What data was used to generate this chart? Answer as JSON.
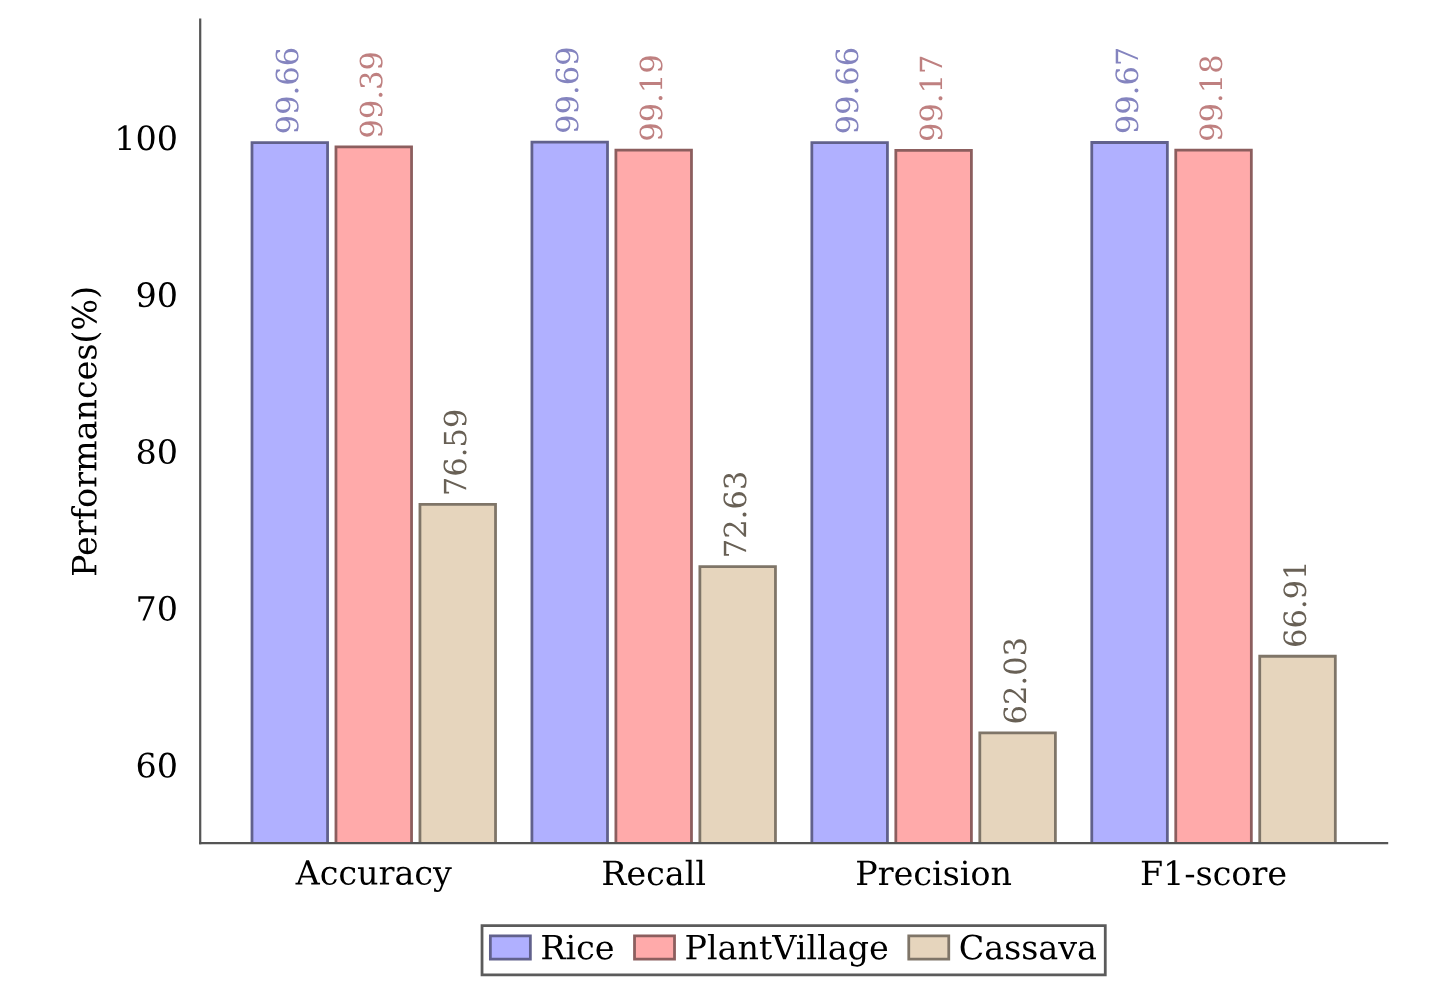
{
  "chart_data": {
    "type": "bar",
    "ylabel": "Performances(%)",
    "categories": [
      "Accuracy",
      "Recall",
      "Precision",
      "F1-score"
    ],
    "series": [
      {
        "name": "Rice",
        "color": "#b0b0ff",
        "values": [
          99.66,
          99.69,
          99.66,
          99.67
        ]
      },
      {
        "name": "PlantVillage",
        "color": "#ffaaaa",
        "values": [
          99.39,
          99.19,
          99.17,
          99.18
        ]
      },
      {
        "name": "Cassava",
        "color": "#e6d5bd",
        "values": [
          76.59,
          72.63,
          62.03,
          66.91
        ]
      }
    ],
    "ylim": [
      55,
      107.5
    ],
    "yticks": [
      60,
      70,
      80,
      90,
      100
    ],
    "grid": false,
    "legend": "bottom",
    "data_labels": true
  }
}
